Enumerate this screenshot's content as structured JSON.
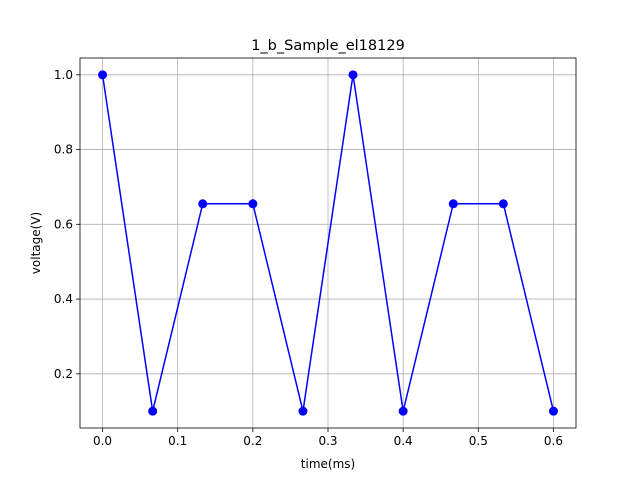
{
  "chart_data": {
    "type": "line",
    "title": "1_b_Sample_el18129",
    "xlabel": "time(ms)",
    "ylabel": "voltage(V)",
    "xlim": [
      -0.03,
      0.63
    ],
    "ylim": [
      0.055,
      1.045
    ],
    "xticks": [
      0.0,
      0.1,
      0.2,
      0.3,
      0.4,
      0.5,
      0.6
    ],
    "xtick_labels": [
      "0.0",
      "0.1",
      "0.2",
      "0.3",
      "0.4",
      "0.5",
      "0.6"
    ],
    "yticks": [
      0.2,
      0.4,
      0.6,
      0.8,
      1.0
    ],
    "ytick_labels": [
      "0.2",
      "0.4",
      "0.6",
      "0.8",
      "1.0"
    ],
    "grid": true,
    "series": [
      {
        "color": "#0000ff",
        "marker": "circle",
        "x": [
          0.0,
          0.0667,
          0.1333,
          0.2,
          0.2667,
          0.3333,
          0.4,
          0.4667,
          0.5333,
          0.6
        ],
        "y": [
          1.0,
          0.1,
          0.655,
          0.655,
          0.1,
          1.0,
          0.1,
          0.655,
          0.655,
          0.1
        ]
      }
    ]
  }
}
